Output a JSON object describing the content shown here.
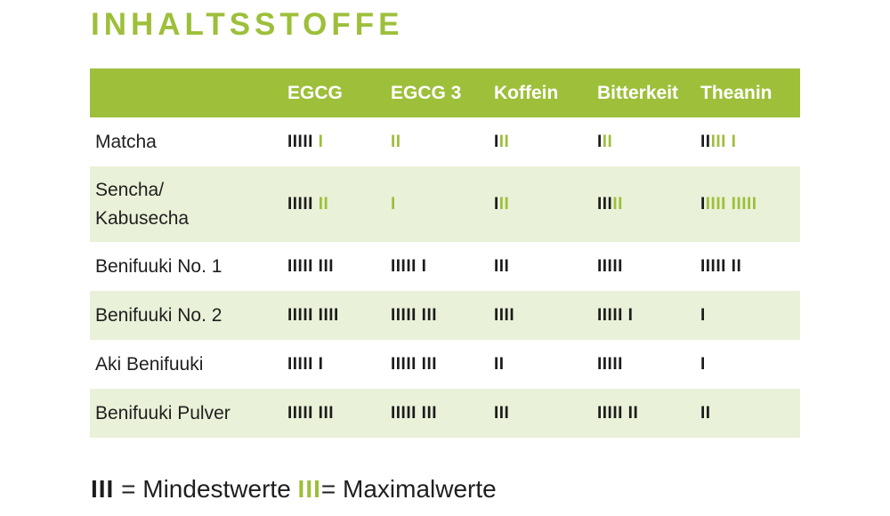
{
  "title": "INHALTSSTOFFE",
  "headers": [
    "EGCG",
    "EGCG 3",
    "Koffein",
    "Bitterkeit",
    "Theanin"
  ],
  "rows": [
    {
      "name": "Matcha",
      "tallies": [
        {
          "black": "IIIII",
          "green": " I"
        },
        {
          "black": "",
          "green": "II"
        },
        {
          "black": "I",
          "green": "II"
        },
        {
          "black": "I",
          "green": "II"
        },
        {
          "black": "II",
          "green": "III I"
        }
      ]
    },
    {
      "name": "Sencha/\nKabusecha",
      "tallies": [
        {
          "black": "IIIII ",
          "green": "II"
        },
        {
          "black": "",
          "green": "I"
        },
        {
          "black": "I",
          "green": "II"
        },
        {
          "black": "III",
          "green": "II"
        },
        {
          "black": "I",
          "green": "IIII IIIII"
        }
      ]
    },
    {
      "name": "Benifuuki No. 1",
      "tallies": [
        {
          "black": "IIIII III",
          "green": ""
        },
        {
          "black": "IIIII I",
          "green": ""
        },
        {
          "black": "III",
          "green": ""
        },
        {
          "black": "IIIII",
          "green": ""
        },
        {
          "black": "IIIII II",
          "green": ""
        }
      ]
    },
    {
      "name": "Benifuuki No. 2",
      "tallies": [
        {
          "black": "IIIII IIII",
          "green": ""
        },
        {
          "black": "IIIII III",
          "green": ""
        },
        {
          "black": "IIII",
          "green": ""
        },
        {
          "black": "IIIII I",
          "green": ""
        },
        {
          "black": "I",
          "green": ""
        }
      ]
    },
    {
      "name": "Aki Benifuuki",
      "tallies": [
        {
          "black": "IIIII I",
          "green": ""
        },
        {
          "black": "IIIII III",
          "green": ""
        },
        {
          "black": "II",
          "green": ""
        },
        {
          "black": "IIIII",
          "green": ""
        },
        {
          "black": "I",
          "green": ""
        }
      ]
    },
    {
      "name": "Benifuuki Pulver",
      "tallies": [
        {
          "black": "IIIII III",
          "green": ""
        },
        {
          "black": "IIIII III",
          "green": ""
        },
        {
          "black": "III",
          "green": ""
        },
        {
          "black": "IIIII II",
          "green": ""
        },
        {
          "black": "II",
          "green": ""
        }
      ]
    }
  ],
  "legend": {
    "min_bars": "III",
    "min_label": " = Mindestwerte ",
    "max_bars": "III",
    "max_label": "= Maximalwerte"
  },
  "colors": {
    "accent": "#9dbf3a",
    "row_alt": "#e9f1d8",
    "text": "#1f1f1f"
  }
}
